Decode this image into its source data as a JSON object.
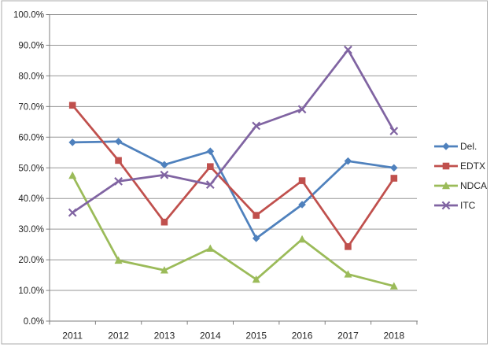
{
  "chart_data": {
    "type": "line",
    "title": "",
    "xlabel": "",
    "ylabel": "",
    "categories": [
      "2011",
      "2012",
      "2013",
      "2014",
      "2015",
      "2016",
      "2017",
      "2018"
    ],
    "series": [
      {
        "name": "Del.",
        "marker": "diamond",
        "color": "#4F81BD",
        "values": [
          58.3,
          58.6,
          51.0,
          55.4,
          27.0,
          38.0,
          52.2,
          50.0
        ]
      },
      {
        "name": "EDTX",
        "marker": "square",
        "color": "#C0504D",
        "values": [
          70.4,
          52.4,
          32.3,
          50.4,
          34.5,
          45.8,
          24.3,
          46.6
        ]
      },
      {
        "name": "NDCA",
        "marker": "triangle",
        "color": "#9BBB59",
        "values": [
          47.5,
          19.8,
          16.6,
          23.7,
          13.6,
          26.7,
          15.3,
          11.4
        ]
      },
      {
        "name": "ITC",
        "marker": "x",
        "color": "#8064A2",
        "values": [
          35.4,
          45.6,
          47.7,
          44.5,
          63.7,
          69.1,
          88.5,
          62.0
        ]
      }
    ],
    "ylim": [
      0,
      100
    ],
    "ytick_step": 10,
    "ytick_labels": [
      "0.0%",
      "10.0%",
      "20.0%",
      "30.0%",
      "40.0%",
      "50.0%",
      "60.0%",
      "70.0%",
      "80.0%",
      "90.0%",
      "100.0%"
    ],
    "grid": true,
    "legend_position": "right",
    "colors": {
      "gridline": "#969696",
      "axis": "#7F7F7F",
      "tick": "#7F7F7F",
      "text": "#262626",
      "frame_border": "#ABABAB",
      "background": "#FFFFFF"
    }
  }
}
